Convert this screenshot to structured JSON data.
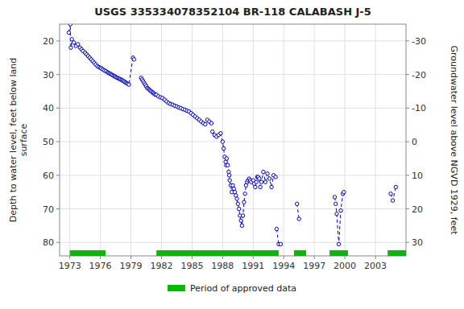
{
  "chart_data": {
    "type": "line",
    "title": "USGS 335334078352104 BR-118 CALABASH J-5",
    "ylabel": "Depth to water level, feet below land\n surface",
    "y2label": "Groundwater level above NGVD 1929, feet",
    "xlim": [
      1972.0,
      2006.0
    ],
    "xticks": [
      1973,
      1976,
      1979,
      1982,
      1985,
      1988,
      1991,
      1994,
      1997,
      2000,
      2003
    ],
    "ylim": [
      84,
      15
    ],
    "yticks": [
      20,
      30,
      40,
      50,
      60,
      70,
      80
    ],
    "y2lim": [
      34,
      -35
    ],
    "y2ticks": [
      30,
      20,
      10,
      0,
      -10,
      -20,
      -30
    ],
    "grid": true,
    "legend": "bottom",
    "bands": {
      "name": "Period of approved data",
      "color": "#00bb00",
      "ranges": [
        [
          1973.0,
          1976.5
        ],
        [
          1981.5,
          1993.5
        ],
        [
          1995.0,
          1996.2
        ],
        [
          1998.5,
          2000.3
        ],
        [
          2004.2,
          2006.0
        ]
      ]
    },
    "series": [
      {
        "color": "#0000cc",
        "line_style": "dashed",
        "marker": "open-circle",
        "x": [
          1972.9,
          1973.05,
          1973.1,
          1973.2,
          1973.4,
          1973.6,
          1973.8,
          1974.0,
          1974.15,
          1974.3,
          1974.5,
          1974.65,
          1974.8,
          1974.95,
          1975.1,
          1975.25,
          1975.4,
          1975.55,
          1975.7,
          1975.85,
          1976.0,
          1976.1,
          1976.25,
          1976.4,
          1976.55,
          1976.7,
          1976.8,
          1976.9,
          1977.0,
          1977.1,
          1977.2,
          1977.3,
          1977.4,
          1977.5,
          1977.6,
          1977.7,
          1977.8,
          1977.9,
          1978.0,
          1978.1,
          1978.2,
          1978.3,
          1978.4,
          1978.5,
          1978.6,
          1978.7,
          1978.8,
          1979.2,
          1979.3
        ],
        "values": [
          17.5,
          15.0,
          22.0,
          19.5,
          20.5,
          21.5,
          21.0,
          22.0,
          22.5,
          23.0,
          23.5,
          24.0,
          24.5,
          25.0,
          25.5,
          26.0,
          26.5,
          27.0,
          27.5,
          27.8,
          28.0,
          28.2,
          28.5,
          28.8,
          29.0,
          29.3,
          29.5,
          29.7,
          29.8,
          30.0,
          30.2,
          30.4,
          30.5,
          30.7,
          30.9,
          31.0,
          31.2,
          31.3,
          31.5,
          31.6,
          31.8,
          32.0,
          32.2,
          32.4,
          32.6,
          32.8,
          33.0,
          25.0,
          25.5
        ]
      },
      {
        "color": "#0000cc",
        "line_style": "dashed",
        "marker": "open-circle",
        "x": [
          1980.0,
          1980.1,
          1980.2,
          1980.3,
          1980.4,
          1980.5,
          1980.6,
          1980.7,
          1980.8,
          1980.9,
          1981.0,
          1981.1,
          1981.2,
          1981.3,
          1981.4,
          1981.5,
          1981.7,
          1981.9,
          1982.1,
          1982.3,
          1982.5,
          1982.7,
          1982.9,
          1983.1,
          1983.3,
          1983.5,
          1983.7,
          1983.9,
          1984.1,
          1984.3,
          1984.5,
          1984.7,
          1984.9,
          1985.1,
          1985.3,
          1985.5,
          1985.7,
          1985.9,
          1986.1,
          1986.3,
          1986.5,
          1986.7,
          1986.9
        ],
        "values": [
          31.0,
          31.5,
          32.0,
          32.5,
          33.0,
          33.5,
          34.0,
          34.2,
          34.5,
          34.8,
          35.0,
          35.3,
          35.5,
          35.8,
          36.0,
          36.0,
          36.5,
          36.8,
          37.0,
          37.5,
          38.0,
          38.5,
          38.8,
          39.0,
          39.3,
          39.5,
          39.8,
          40.0,
          40.3,
          40.5,
          40.8,
          41.0,
          41.5,
          42.0,
          42.5,
          43.0,
          43.5,
          44.0,
          44.5,
          44.8,
          43.5,
          44.0,
          44.5
        ]
      },
      {
        "color": "#0000cc",
        "line_style": "dashed",
        "marker": "open-circle",
        "x": [
          1987.0,
          1987.2,
          1987.4,
          1987.6,
          1987.8,
          1988.0,
          1988.1,
          1988.2,
          1988.3,
          1988.35,
          1988.4,
          1988.5,
          1988.6,
          1988.65,
          1988.7,
          1988.8,
          1988.9,
          1989.0,
          1989.1,
          1989.2,
          1989.3,
          1989.4,
          1989.5,
          1989.6,
          1989.7,
          1989.8,
          1989.9,
          1990.0,
          1990.1,
          1990.2,
          1990.3,
          1990.4,
          1990.5,
          1990.6,
          1990.7,
          1990.8,
          1991.0,
          1991.1,
          1991.2,
          1991.3,
          1991.4,
          1991.5,
          1991.6,
          1991.7,
          1991.8,
          1992.0,
          1992.2,
          1992.4,
          1992.6,
          1992.8,
          1993.0,
          1993.2
        ],
        "values": [
          47.0,
          48.0,
          48.5,
          48.0,
          47.5,
          50.0,
          52.0,
          54.5,
          56.0,
          57.0,
          55.0,
          57.0,
          59.0,
          60.0,
          61.5,
          63.0,
          65.0,
          63.0,
          64.0,
          65.0,
          66.0,
          67.0,
          68.5,
          70.0,
          72.0,
          73.5,
          75.0,
          72.0,
          68.0,
          65.5,
          63.0,
          62.0,
          61.5,
          61.0,
          61.5,
          62.0,
          61.5,
          62.5,
          63.5,
          62.0,
          60.5,
          60.5,
          61.0,
          63.5,
          62.0,
          59.0,
          62.0,
          59.5,
          61.0,
          63.5,
          60.0,
          60.5
        ]
      },
      {
        "color": "#0000cc",
        "line_style": "dashed",
        "marker": "open-circle",
        "x": [
          1993.3,
          1993.5,
          1993.7
        ],
        "values": [
          76.0,
          80.5,
          80.5
        ]
      },
      {
        "color": "#0000cc",
        "line_style": "dashed",
        "marker": "open-circle",
        "x": [
          1995.3,
          1995.5
        ],
        "values": [
          68.5,
          73.0
        ]
      },
      {
        "color": "#0000cc",
        "line_style": "dashed",
        "marker": "open-circle",
        "x": [
          1999.0,
          1999.1,
          1999.2,
          1999.4,
          1999.6,
          1999.8,
          1999.9
        ],
        "values": [
          66.5,
          68.5,
          71.5,
          80.5,
          70.5,
          65.5,
          65.0
        ]
      },
      {
        "color": "#0000cc",
        "line_style": "dashed",
        "marker": "open-circle",
        "x": [
          2004.5,
          2004.7,
          2005.0
        ],
        "values": [
          65.5,
          67.5,
          63.5
        ]
      }
    ]
  }
}
